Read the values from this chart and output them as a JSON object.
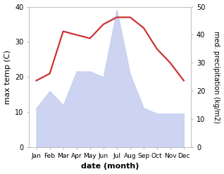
{
  "months": [
    "Jan",
    "Feb",
    "Mar",
    "Apr",
    "May",
    "Jun",
    "Jul",
    "Aug",
    "Sep",
    "Oct",
    "Nov",
    "Dec"
  ],
  "temperature": [
    19,
    21,
    33,
    32,
    31,
    35,
    37,
    37,
    34,
    28,
    24,
    19
  ],
  "precipitation": [
    14,
    20,
    15,
    27,
    27,
    25,
    49,
    26,
    14,
    12,
    12,
    12
  ],
  "temp_color": "#cc3333",
  "precip_fill_color": "#c5cdf0",
  "precip_alpha": 0.85,
  "left_ylim": [
    0,
    40
  ],
  "right_ylim": [
    0,
    50
  ],
  "left_yticks": [
    0,
    10,
    20,
    30,
    40
  ],
  "right_yticks": [
    0,
    10,
    20,
    30,
    40,
    50
  ],
  "left_ylabel": "max temp (C)",
  "right_ylabel": "med. precipitation (kg/m2)",
  "xlabel": "date (month)",
  "temp_linewidth": 1.6,
  "background_color": "#ffffff"
}
